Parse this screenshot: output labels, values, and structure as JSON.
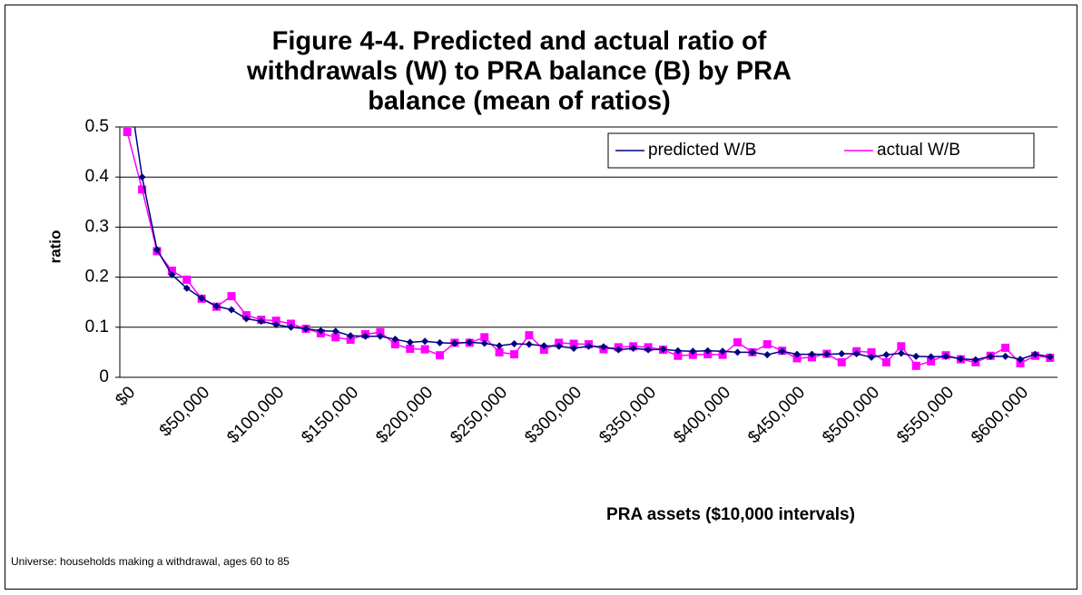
{
  "chart_data": {
    "type": "line",
    "title": [
      "Figure 4-4.  Predicted and actual ratio of",
      "withdrawals (W) to PRA balance (B) by PRA",
      "balance (mean of ratios)"
    ],
    "y_label": "ratio",
    "x_label": "PRA assets ($10,000 intervals)",
    "note": "Universe:  households making a withdrawal, ages 60 to 85",
    "categories": [
      "$0",
      null,
      null,
      null,
      null,
      "$50,000",
      null,
      null,
      null,
      null,
      "$100,000",
      null,
      null,
      null,
      null,
      "$150,000",
      null,
      null,
      null,
      null,
      "$200,000",
      null,
      null,
      null,
      null,
      "$250,000",
      null,
      null,
      null,
      null,
      "$300,000",
      null,
      null,
      null,
      null,
      "$350,000",
      null,
      null,
      null,
      null,
      "$400,000",
      null,
      null,
      null,
      null,
      "$450,000",
      null,
      null,
      null,
      null,
      "$500,000",
      null,
      null,
      null,
      null,
      "$550,000",
      null,
      null,
      null,
      null,
      "$600,000",
      null,
      null
    ],
    "series": [
      {
        "name": "predicted W/B",
        "color": "#000080",
        "marker": "diamond",
        "values": [
          0.6,
          0.4,
          0.255,
          0.205,
          0.178,
          0.158,
          0.142,
          0.135,
          0.117,
          0.112,
          0.105,
          0.1,
          0.097,
          0.093,
          0.092,
          0.083,
          0.082,
          0.082,
          0.076,
          0.07,
          0.072,
          0.069,
          0.068,
          0.07,
          0.068,
          0.063,
          0.067,
          0.066,
          0.063,
          0.062,
          0.058,
          0.062,
          0.061,
          0.055,
          0.058,
          0.055,
          0.056,
          0.053,
          0.052,
          0.053,
          0.052,
          0.05,
          0.05,
          0.045,
          0.052,
          0.046,
          0.046,
          0.046,
          0.047,
          0.047,
          0.04,
          0.045,
          0.048,
          0.042,
          0.041,
          0.042,
          0.037,
          0.035,
          0.042,
          0.042,
          0.036,
          0.046,
          0.041
        ]
      },
      {
        "name": "actual W/B",
        "color": "#ff00ff",
        "marker": "square",
        "values": [
          0.49,
          0.375,
          0.252,
          0.213,
          0.195,
          0.157,
          0.141,
          0.162,
          0.124,
          0.115,
          0.113,
          0.107,
          0.097,
          0.088,
          0.08,
          0.075,
          0.086,
          0.09,
          0.066,
          0.057,
          0.056,
          0.044,
          0.069,
          0.069,
          0.08,
          0.05,
          0.046,
          0.084,
          0.055,
          0.069,
          0.067,
          0.066,
          0.056,
          0.06,
          0.062,
          0.06,
          0.055,
          0.043,
          0.045,
          0.046,
          0.045,
          0.07,
          0.05,
          0.066,
          0.053,
          0.038,
          0.04,
          0.047,
          0.03,
          0.052,
          0.05,
          0.03,
          0.062,
          0.023,
          0.032,
          0.044,
          0.036,
          0.03,
          0.043,
          0.059,
          0.028,
          0.043,
          0.039
        ]
      }
    ],
    "ylim": [
      0,
      0.5
    ],
    "yticks": [
      0,
      0.1,
      0.2,
      0.3,
      0.4,
      0.5
    ],
    "grid": true,
    "legend": "top-right"
  }
}
